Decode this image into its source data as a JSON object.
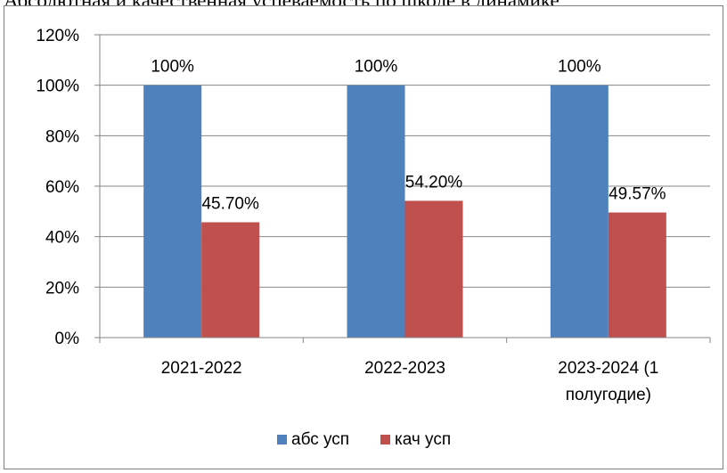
{
  "title_fragment": "Абсолютная и качественная успеваемость по школе в динамике",
  "colors": {
    "series1": "#4f81bd",
    "series2": "#c0504d",
    "grid": "#868686",
    "axis": "#868686"
  },
  "chart_data": {
    "type": "bar",
    "categories": [
      "2021-2022",
      "2022-2023",
      "2023-2024 (1 полугодие)"
    ],
    "category_lines": [
      [
        "2021-2022"
      ],
      [
        "2022-2023"
      ],
      [
        "2023-2024 (1",
        "полугодие)"
      ]
    ],
    "series": [
      {
        "name": "абс усп",
        "values": [
          100,
          100,
          100
        ],
        "labels": [
          "100%",
          "100%",
          "100%"
        ]
      },
      {
        "name": "кач усп",
        "values": [
          45.7,
          54.2,
          49.57
        ],
        "labels": [
          "45.70%",
          "54.20%",
          "49.57%"
        ]
      }
    ],
    "ylim": [
      0,
      120
    ],
    "y_ticks": [
      "0%",
      "20%",
      "40%",
      "60%",
      "80%",
      "100%",
      "120%"
    ],
    "y_tick_values": [
      0,
      20,
      40,
      60,
      80,
      100,
      120
    ],
    "grid": true,
    "legend_position": "bottom"
  }
}
